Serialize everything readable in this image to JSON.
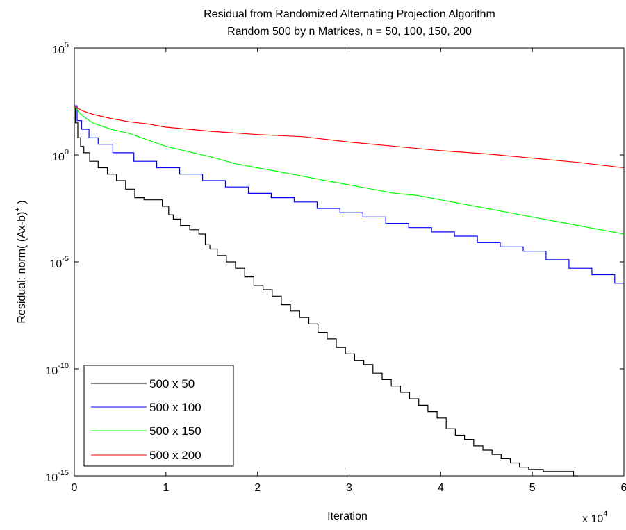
{
  "chart_data": {
    "type": "line",
    "title_lines": [
      "Residual from Randomized Alternating Projection Algorithm",
      "Random 500 by n Matrices, n = 50, 100, 150, 200"
    ],
    "xlabel": "Iteration",
    "ylabel_main": "Residual: norm( (Ax-b)",
    "ylabel_sup": "+",
    "ylabel_tail": " )",
    "x_multiplier_base": "x 10",
    "x_multiplier_exp": "4",
    "x_scale": "linear",
    "y_scale": "log",
    "xlim": [
      0,
      6
    ],
    "ylim_log10": [
      -15,
      5
    ],
    "x_ticks": [
      {
        "value": 0,
        "label": "0"
      },
      {
        "value": 1,
        "label": "1"
      },
      {
        "value": 2,
        "label": "2"
      },
      {
        "value": 3,
        "label": "3"
      },
      {
        "value": 4,
        "label": "4"
      },
      {
        "value": 5,
        "label": "5"
      },
      {
        "value": 6,
        "label": "6"
      }
    ],
    "y_ticks": [
      {
        "log10": 5,
        "base": "10",
        "exp": "5"
      },
      {
        "log10": 0,
        "base": "10",
        "exp": "0"
      },
      {
        "log10": -5,
        "base": "10",
        "exp": "-5"
      },
      {
        "log10": -10,
        "base": "10",
        "exp": "-10"
      },
      {
        "log10": -15,
        "base": "10",
        "exp": "-15"
      }
    ],
    "grid": false,
    "legend_position": "bottom-left",
    "x_unit_note": "x values in units of 10^4 iterations; y values given as log10(residual)",
    "series": [
      {
        "name": "500 x 50",
        "color": "#000000",
        "style": "step",
        "points": [
          [
            0,
            2.3
          ],
          [
            0.02,
            1.5
          ],
          [
            0.05,
            0.8
          ],
          [
            0.08,
            0.4
          ],
          [
            0.12,
            0.1
          ],
          [
            0.2,
            -0.3
          ],
          [
            0.3,
            -0.6
          ],
          [
            0.4,
            -0.9
          ],
          [
            0.5,
            -1.2
          ],
          [
            0.6,
            -1.6
          ],
          [
            0.7,
            -2.0
          ],
          [
            0.8,
            -2.1
          ],
          [
            0.9,
            -2.1
          ],
          [
            1.0,
            -2.4
          ],
          [
            1.05,
            -2.8
          ],
          [
            1.1,
            -3.0
          ],
          [
            1.2,
            -3.3
          ],
          [
            1.3,
            -3.5
          ],
          [
            1.4,
            -3.7
          ],
          [
            1.45,
            -4.2
          ],
          [
            1.5,
            -4.4
          ],
          [
            1.6,
            -4.7
          ],
          [
            1.7,
            -5.0
          ],
          [
            1.8,
            -5.3
          ],
          [
            1.9,
            -5.7
          ],
          [
            2.0,
            -6.1
          ],
          [
            2.1,
            -6.3
          ],
          [
            2.2,
            -6.6
          ],
          [
            2.3,
            -7.0
          ],
          [
            2.4,
            -7.3
          ],
          [
            2.5,
            -7.6
          ],
          [
            2.6,
            -7.9
          ],
          [
            2.7,
            -8.3
          ],
          [
            2.8,
            -8.6
          ],
          [
            2.9,
            -9.0
          ],
          [
            3.0,
            -9.3
          ],
          [
            3.1,
            -9.6
          ],
          [
            3.2,
            -9.8
          ],
          [
            3.3,
            -10.2
          ],
          [
            3.4,
            -10.5
          ],
          [
            3.5,
            -10.8
          ],
          [
            3.6,
            -11.1
          ],
          [
            3.7,
            -11.4
          ],
          [
            3.8,
            -11.7
          ],
          [
            3.9,
            -12.0
          ],
          [
            4.0,
            -12.3
          ],
          [
            4.1,
            -12.8
          ],
          [
            4.2,
            -13.1
          ],
          [
            4.3,
            -13.3
          ],
          [
            4.4,
            -13.6
          ],
          [
            4.5,
            -13.8
          ],
          [
            4.6,
            -14.0
          ],
          [
            4.7,
            -14.2
          ],
          [
            4.8,
            -14.4
          ],
          [
            4.9,
            -14.6
          ],
          [
            5.0,
            -14.7
          ],
          [
            5.2,
            -14.8
          ],
          [
            5.45,
            -14.8
          ],
          [
            5.45,
            -15.0
          ],
          [
            5.5,
            -15.0
          ]
        ]
      },
      {
        "name": "500 x 100",
        "color": "#0000ff",
        "style": "step",
        "points": [
          [
            0,
            2.3
          ],
          [
            0.05,
            1.6
          ],
          [
            0.1,
            1.2
          ],
          [
            0.2,
            0.8
          ],
          [
            0.3,
            0.5
          ],
          [
            0.5,
            0.1
          ],
          [
            0.75,
            -0.3
          ],
          [
            1.0,
            -0.6
          ],
          [
            1.25,
            -0.9
          ],
          [
            1.5,
            -1.2
          ],
          [
            1.75,
            -1.5
          ],
          [
            2.0,
            -1.8
          ],
          [
            2.25,
            -2.0
          ],
          [
            2.5,
            -2.2
          ],
          [
            2.75,
            -2.5
          ],
          [
            3.0,
            -2.7
          ],
          [
            3.25,
            -2.9
          ],
          [
            3.5,
            -3.2
          ],
          [
            3.75,
            -3.4
          ],
          [
            4.0,
            -3.6
          ],
          [
            4.25,
            -3.8
          ],
          [
            4.5,
            -4.1
          ],
          [
            4.75,
            -4.3
          ],
          [
            5.0,
            -4.5
          ],
          [
            5.25,
            -4.9
          ],
          [
            5.5,
            -5.3
          ],
          [
            5.75,
            -5.6
          ],
          [
            6.0,
            -6.0
          ]
        ]
      },
      {
        "name": "500 x 150",
        "color": "#00ff00",
        "style": "line",
        "points": [
          [
            0,
            2.3
          ],
          [
            0.05,
            2.0
          ],
          [
            0.1,
            1.8
          ],
          [
            0.2,
            1.5
          ],
          [
            0.4,
            1.2
          ],
          [
            0.6,
            1.0
          ],
          [
            0.8,
            0.7
          ],
          [
            1.0,
            0.4
          ],
          [
            1.25,
            0.15
          ],
          [
            1.5,
            -0.1
          ],
          [
            1.75,
            -0.4
          ],
          [
            2.0,
            -0.6
          ],
          [
            2.25,
            -0.8
          ],
          [
            2.5,
            -1.0
          ],
          [
            2.75,
            -1.2
          ],
          [
            3.0,
            -1.4
          ],
          [
            3.25,
            -1.6
          ],
          [
            3.5,
            -1.8
          ],
          [
            3.75,
            -1.9
          ],
          [
            4.0,
            -2.1
          ],
          [
            4.25,
            -2.3
          ],
          [
            4.5,
            -2.5
          ],
          [
            4.75,
            -2.7
          ],
          [
            5.0,
            -2.9
          ],
          [
            5.25,
            -3.1
          ],
          [
            5.5,
            -3.3
          ],
          [
            5.75,
            -3.5
          ],
          [
            6.0,
            -3.7
          ]
        ]
      },
      {
        "name": "500 x 200",
        "color": "#ff0000",
        "style": "line",
        "points": [
          [
            0,
            2.3
          ],
          [
            0.05,
            2.15
          ],
          [
            0.1,
            2.05
          ],
          [
            0.2,
            1.9
          ],
          [
            0.4,
            1.7
          ],
          [
            0.6,
            1.55
          ],
          [
            0.8,
            1.45
          ],
          [
            1.0,
            1.3
          ],
          [
            1.5,
            1.1
          ],
          [
            2.0,
            0.95
          ],
          [
            2.5,
            0.85
          ],
          [
            3.0,
            0.6
          ],
          [
            3.5,
            0.4
          ],
          [
            4.0,
            0.2
          ],
          [
            4.5,
            0.05
          ],
          [
            5.0,
            -0.15
          ],
          [
            5.5,
            -0.35
          ],
          [
            6.0,
            -0.6
          ]
        ]
      }
    ]
  }
}
